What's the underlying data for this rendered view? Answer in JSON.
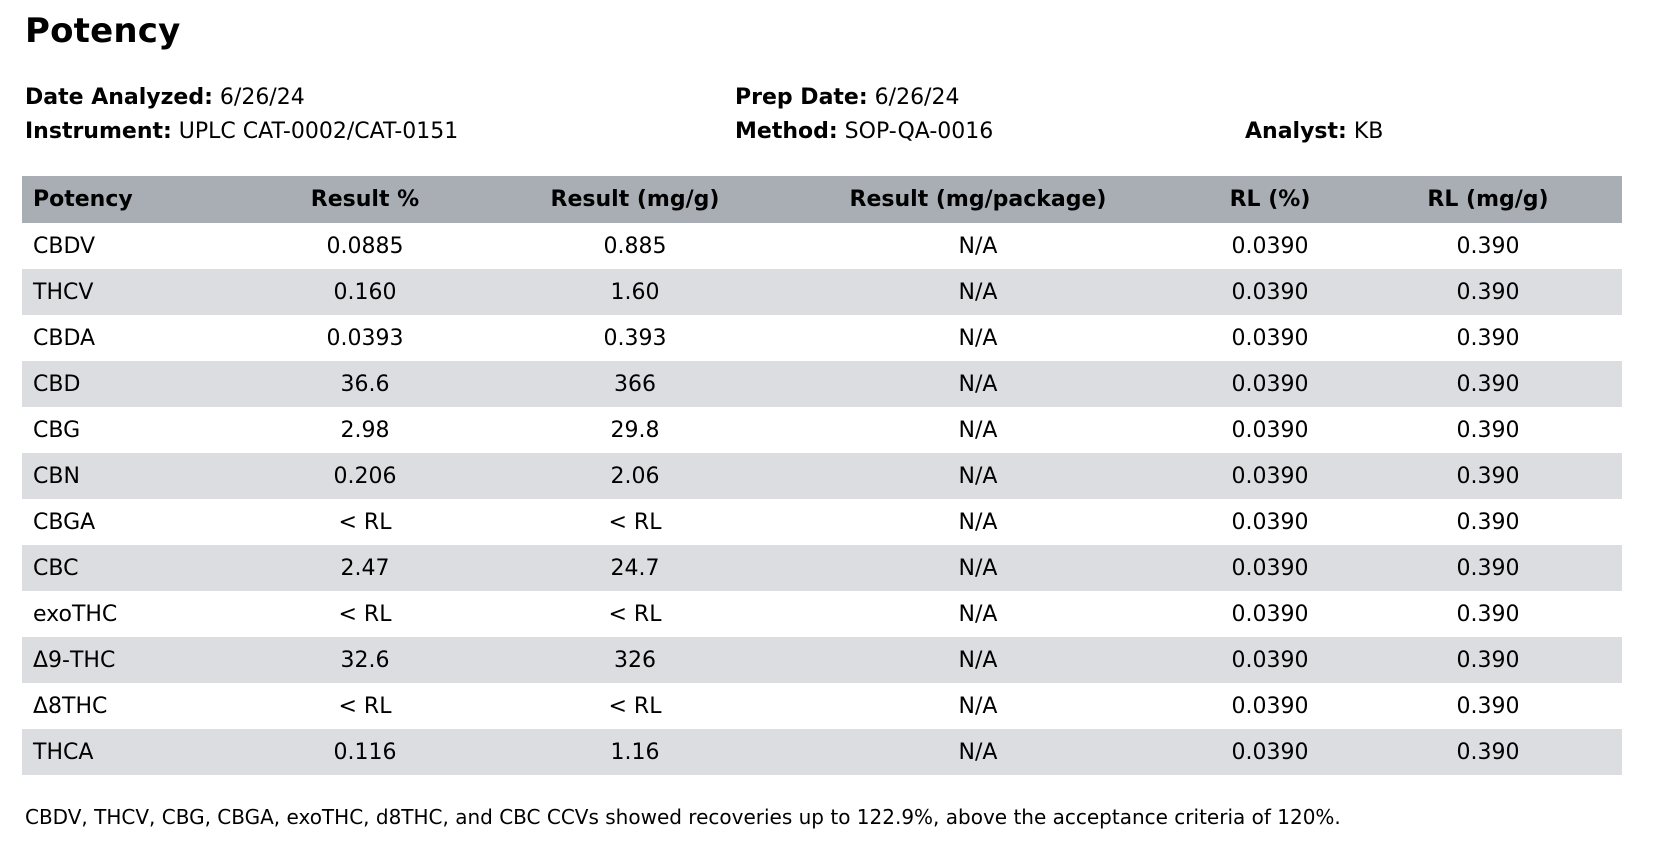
{
  "page": {
    "title": "Potency"
  },
  "meta": {
    "date_analyzed_label": "Date Analyzed:",
    "date_analyzed_value": "6/26/24",
    "prep_date_label": "Prep Date:",
    "prep_date_value": "6/26/24",
    "instrument_label": "Instrument:",
    "instrument_value": "UPLC CAT-0002/CAT-0151",
    "method_label": "Method:",
    "method_value": "SOP-QA-0016",
    "analyst_label": "Analyst:",
    "analyst_value": "KB"
  },
  "table": {
    "columns": [
      "Potency",
      "Result %",
      "Result (mg/g)",
      "Result (mg/package)",
      "RL (%)",
      "RL (mg/g)"
    ],
    "rows": [
      [
        "CBDV",
        "0.0885",
        "0.885",
        "N/A",
        "0.0390",
        "0.390"
      ],
      [
        "THCV",
        "0.160",
        "1.60",
        "N/A",
        "0.0390",
        "0.390"
      ],
      [
        "CBDA",
        "0.0393",
        "0.393",
        "N/A",
        "0.0390",
        "0.390"
      ],
      [
        "CBD",
        "36.6",
        "366",
        "N/A",
        "0.0390",
        "0.390"
      ],
      [
        "CBG",
        "2.98",
        "29.8",
        "N/A",
        "0.0390",
        "0.390"
      ],
      [
        "CBN",
        "0.206",
        "2.06",
        "N/A",
        "0.0390",
        "0.390"
      ],
      [
        "CBGA",
        "< RL",
        "< RL",
        "N/A",
        "0.0390",
        "0.390"
      ],
      [
        "CBC",
        "2.47",
        "24.7",
        "N/A",
        "0.0390",
        "0.390"
      ],
      [
        "exoTHC",
        "< RL",
        "< RL",
        "N/A",
        "0.0390",
        "0.390"
      ],
      [
        "Δ9-THC",
        "32.6",
        "326",
        "N/A",
        "0.0390",
        "0.390"
      ],
      [
        "Δ8THC",
        "< RL",
        "< RL",
        "N/A",
        "0.0390",
        "0.390"
      ],
      [
        "THCA",
        "0.116",
        "1.16",
        "N/A",
        "0.0390",
        "0.390"
      ]
    ]
  },
  "footnote": "CBDV, THCV, CBG, CBGA, exoTHC, d8THC, and CBC CCVs showed recoveries up to 122.9%, above the acceptance criteria of 120%.",
  "colors": {
    "header_bg": "#a9aeb4",
    "stripe_bg": "#dbdde0",
    "text": "#000000"
  }
}
